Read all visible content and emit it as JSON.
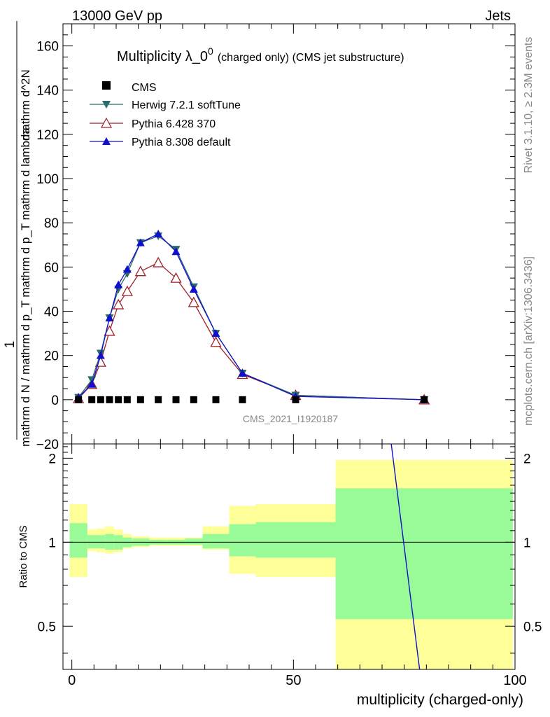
{
  "header": {
    "left": "13000 GeV pp",
    "right": "Jets"
  },
  "side_labels": {
    "rivet": "Rivet 3.1.10, ≥ 2.3M events",
    "source": "mcplots.cern.ch [arXiv:1306.3436]"
  },
  "watermark": "CMS_2021_I1920187",
  "chart_data": [
    {
      "type": "line",
      "title_main": "Multiplicity λ_0",
      "title_sup": "0",
      "title_sub": "(charged only) (CMS jet substructure)",
      "ylabel_top": "1",
      "ylabel_bottom": "mathrm d N / mathrm d p_T mathrm d p_T mathrm d lambda",
      "ylabel_numerator": "mathrm d^2N",
      "xlabel": "multiplicity (charged-only)",
      "xlim": [
        -2,
        100
      ],
      "ylim": [
        -20,
        170
      ],
      "yticks": [
        -20,
        0,
        20,
        40,
        60,
        80,
        100,
        120,
        140,
        160
      ],
      "ytick_labels": [
        "−20",
        "0",
        "20",
        "40",
        "60",
        "80",
        "100",
        "120",
        "140",
        "160"
      ],
      "legend_position": "top-left",
      "series": [
        {
          "name": "CMS",
          "color": "#000000",
          "marker": "square",
          "x": [
            1.5,
            4.5,
            6.5,
            8.5,
            10.5,
            12.5,
            15.5,
            19.5,
            23.5,
            27.5,
            32.5,
            38.5,
            50.5,
            79.5
          ],
          "values": [
            0,
            0,
            0,
            0,
            0,
            0,
            0,
            0,
            0,
            0,
            0,
            0,
            0,
            0
          ]
        },
        {
          "name": "Herwig 7.2.1 softTune",
          "color": "#2d6a6a",
          "marker": "triangle-down",
          "x": [
            1.5,
            4.5,
            6.5,
            8.5,
            10.5,
            12.5,
            15.5,
            19.5,
            23.5,
            27.5,
            32.5,
            38.5,
            50.5,
            79.5
          ],
          "values": [
            1,
            9,
            21,
            37,
            50,
            57,
            71,
            74,
            68,
            51,
            30,
            12,
            2,
            0
          ]
        },
        {
          "name": "Pythia 6.428 370",
          "color": "#a0202a",
          "marker": "triangle-up-open",
          "x": [
            1.5,
            4.5,
            6.5,
            8.5,
            10.5,
            12.5,
            15.5,
            19.5,
            23.5,
            27.5,
            32.5,
            38.5,
            50.5,
            79.5
          ],
          "values": [
            0.5,
            7,
            17,
            31,
            43,
            49,
            58,
            62,
            55,
            44,
            26,
            11.5,
            2,
            0
          ]
        },
        {
          "name": "Pythia 8.308 default",
          "color": "#1010cc",
          "marker": "triangle-up",
          "x": [
            1.5,
            4.5,
            6.5,
            8.5,
            10.5,
            12.5,
            15.5,
            19.5,
            23.5,
            27.5,
            32.5,
            38.5,
            50.5,
            79.5
          ],
          "values": [
            1,
            7,
            20,
            37,
            52,
            59,
            71,
            75,
            67,
            50,
            30,
            12,
            1.5,
            0
          ]
        }
      ]
    },
    {
      "type": "area",
      "ylabel": "Ratio to CMS",
      "xlim": [
        -2,
        100
      ],
      "ylim": [
        0.35,
        2.25
      ],
      "yticks": [
        0.5,
        1,
        2
      ],
      "ytick_labels": [
        "0.5",
        "1",
        "2"
      ],
      "xticks": [
        0,
        50,
        100
      ],
      "xtick_labels": [
        "0",
        "50",
        "100"
      ],
      "bands": {
        "bin_edges": [
          -0.5,
          3.5,
          5.5,
          7.5,
          9.5,
          11.5,
          13.5,
          17.5,
          21.5,
          25.5,
          29.5,
          35.5,
          41.5,
          59.5,
          99.5
        ],
        "stat_low": [
          0.88,
          0.95,
          0.95,
          0.94,
          0.94,
          0.96,
          0.97,
          0.98,
          0.98,
          0.98,
          0.95,
          0.89,
          0.88,
          0.53
        ],
        "stat_high": [
          1.17,
          1.06,
          1.06,
          1.07,
          1.06,
          1.04,
          1.03,
          1.02,
          1.02,
          1.03,
          1.07,
          1.16,
          1.18,
          1.56
        ],
        "total_low": [
          0.75,
          0.93,
          0.92,
          0.91,
          0.92,
          0.95,
          0.96,
          0.97,
          0.97,
          0.97,
          0.94,
          0.77,
          0.75,
          0.27
        ],
        "total_high": [
          1.37,
          1.11,
          1.12,
          1.14,
          1.11,
          1.07,
          1.05,
          1.04,
          1.04,
          1.04,
          1.14,
          1.35,
          1.37,
          1.97
        ],
        "stat_color": "#98fb98",
        "total_color": "#ffff99"
      },
      "ratio_line": {
        "name": "Pythia 8.308 default",
        "color": "#1010cc",
        "x": [
          72,
          79
        ],
        "values": [
          2.3,
          0.3
        ]
      }
    }
  ]
}
